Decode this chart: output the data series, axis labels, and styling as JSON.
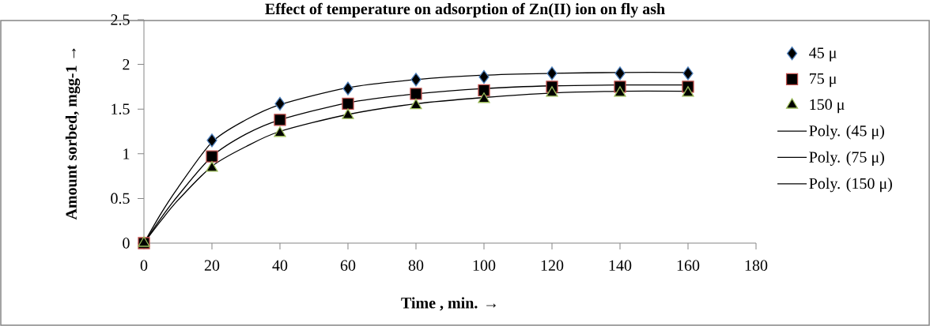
{
  "chart_data": {
    "type": "scatter",
    "title": "Effect of temperature on adsorption of Zn(II) ion on fly ash",
    "xlabel": "Time , min. →",
    "ylabel": "Amount sorbed, mgg-1 →",
    "x": [
      0,
      20,
      40,
      60,
      80,
      100,
      120,
      140,
      160
    ],
    "series": [
      {
        "name": "45 μ",
        "marker": "diamond",
        "color": "#4f81bd",
        "values": [
          null,
          1.15,
          1.56,
          1.73,
          1.83,
          1.86,
          1.9,
          1.9,
          1.9
        ]
      },
      {
        "name": "75 μ",
        "marker": "square",
        "color": "#c0504d",
        "values": [
          0,
          0.97,
          1.38,
          1.56,
          1.67,
          1.71,
          1.75,
          1.75,
          1.75
        ]
      },
      {
        "name": "150 μ",
        "marker": "triangle",
        "color": "#9bbb59",
        "values": [
          0,
          0.84,
          1.23,
          1.43,
          1.54,
          1.61,
          1.68,
          1.68,
          1.68
        ]
      },
      {
        "name": "Poly. (45 μ)",
        "type": "line",
        "marker": "none",
        "color": "#000000",
        "x": [
          0,
          5,
          10,
          20,
          30,
          40,
          60,
          80,
          100,
          120,
          140,
          160
        ],
        "values": [
          0,
          0.33,
          0.62,
          1.13,
          1.38,
          1.55,
          1.74,
          1.83,
          1.88,
          1.9,
          1.91,
          1.91
        ]
      },
      {
        "name": "Poly. (75 μ)",
        "type": "line",
        "marker": "none",
        "color": "#000000",
        "x": [
          0,
          5,
          10,
          20,
          30,
          40,
          60,
          80,
          100,
          120,
          140,
          160
        ],
        "values": [
          0,
          0.28,
          0.53,
          0.97,
          1.22,
          1.38,
          1.57,
          1.67,
          1.73,
          1.76,
          1.77,
          1.77
        ]
      },
      {
        "name": "Poly. (150 μ)",
        "type": "line",
        "marker": "none",
        "color": "#000000",
        "x": [
          0,
          5,
          10,
          20,
          30,
          40,
          60,
          80,
          100,
          120,
          140,
          160
        ],
        "values": [
          0,
          0.25,
          0.48,
          0.86,
          1.08,
          1.25,
          1.44,
          1.56,
          1.63,
          1.68,
          1.7,
          1.7
        ]
      }
    ],
    "xlim": [
      0,
      180
    ],
    "xticks": [
      0,
      20,
      40,
      60,
      80,
      100,
      120,
      140,
      160,
      180
    ],
    "ylim": [
      0,
      2.5
    ],
    "yticks": [
      0,
      0.5,
      1,
      1.5,
      2,
      2.5
    ],
    "legend": "right"
  }
}
